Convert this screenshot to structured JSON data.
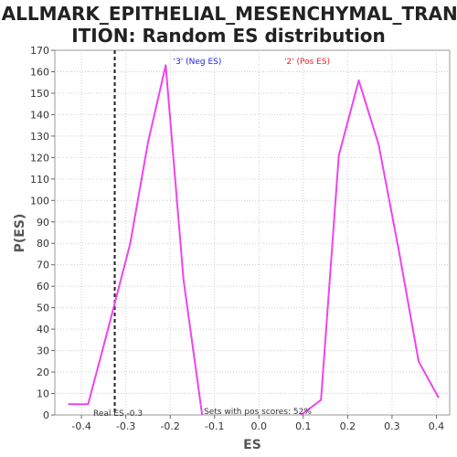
{
  "chart_data": {
    "type": "line",
    "title_line1": "HALLMARK_EPITHELIAL_MESENCHYMAL_TRANS",
    "title_line2": "ITION: Random ES distribution",
    "xlabel": "ES",
    "ylabel": "P(ES)",
    "xlim": [
      -0.46,
      0.43
    ],
    "ylim": [
      0,
      170
    ],
    "x_ticks": [
      -0.4,
      -0.3,
      -0.2,
      -0.1,
      0.0,
      0.1,
      0.2,
      0.3,
      0.4
    ],
    "x_tick_labels": [
      "-0.4",
      "-0.3",
      "-0.2",
      "-0.1",
      "0.0",
      "0.1",
      "0.2",
      "0.3",
      "0.4"
    ],
    "y_ticks": [
      0,
      10,
      20,
      30,
      40,
      50,
      60,
      70,
      80,
      90,
      100,
      110,
      120,
      130,
      140,
      150,
      160,
      170
    ],
    "grid": true,
    "line_color": "#ee44ee",
    "series": [
      {
        "x": [
          -0.43,
          -0.385,
          -0.34,
          -0.29,
          -0.25,
          -0.21,
          -0.17,
          -0.128
        ],
        "y": [
          5,
          5,
          40,
          80,
          127,
          163,
          63,
          0
        ]
      },
      {
        "x": [
          0.095,
          0.14,
          0.18,
          0.225,
          0.27,
          0.315,
          0.36,
          0.405
        ],
        "y": [
          0,
          7,
          121,
          156,
          126,
          77,
          25,
          8
        ]
      }
    ],
    "real_es": -0.325,
    "real_es_label": "Real ES -0.3",
    "neg_label": "'3' (Neg ES)",
    "neg_label_color": "#2222ee",
    "pos_label": "'2' (Pos ES)",
    "pos_label_color": "#ee2222",
    "pos_scores_label": "Sets with pos scores: 52%"
  }
}
